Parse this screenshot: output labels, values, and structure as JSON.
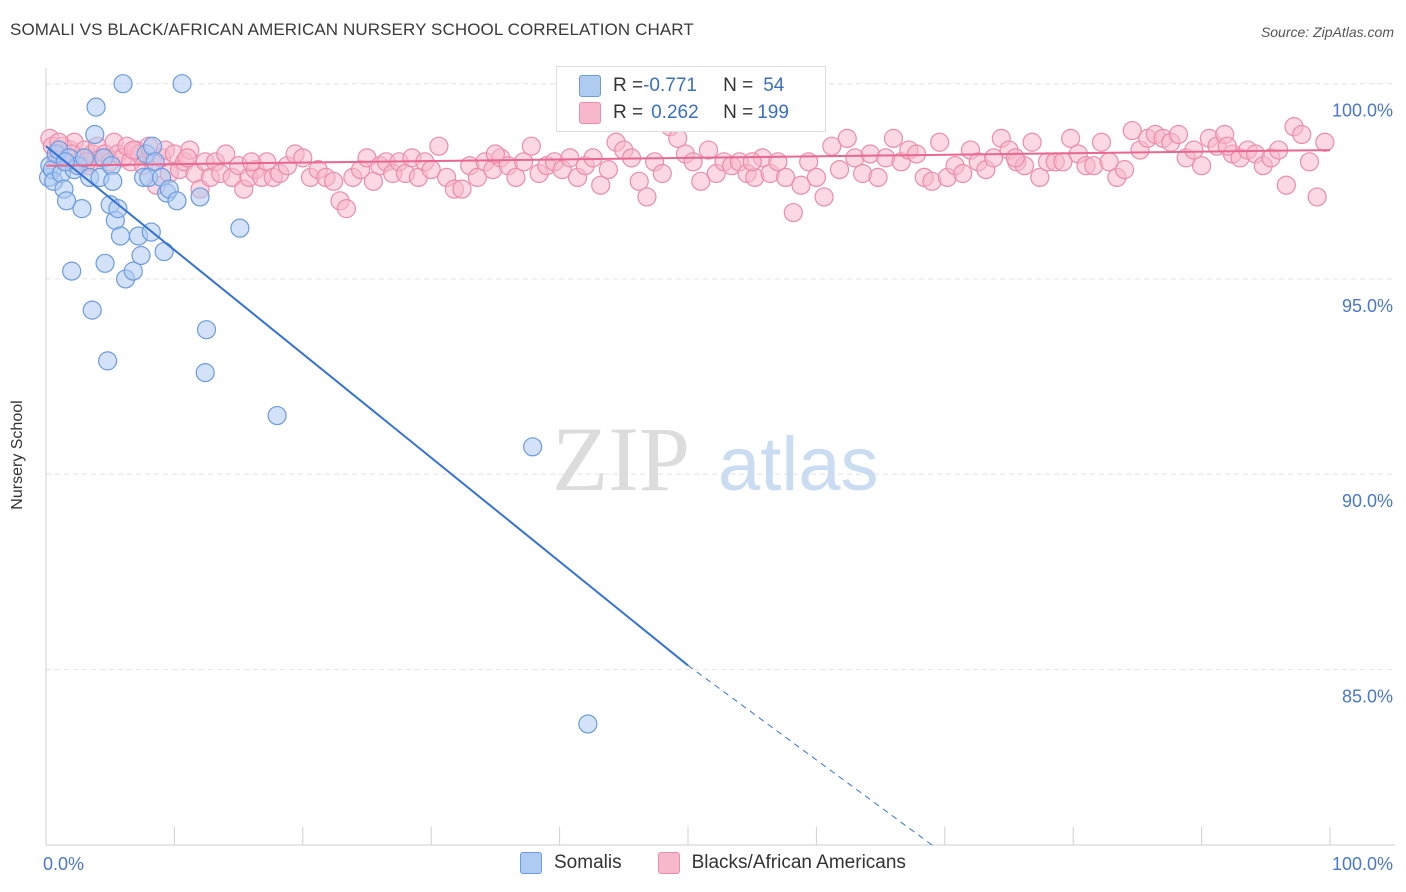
{
  "header": {
    "title": "SOMALI VS BLACK/AFRICAN AMERICAN NURSERY SCHOOL CORRELATION CHART",
    "source": "Source: ZipAtlas.com"
  },
  "watermark": {
    "zip": "ZIP",
    "atlas": "atlas"
  },
  "legend_top": {
    "rows": [
      {
        "r_label": "R = ",
        "r_value": "-0.771",
        "n_label": "N = ",
        "n_value": "54",
        "color": "#aecbf2"
      },
      {
        "r_label": "R = ",
        "r_value": "0.262",
        "n_label": "N = ",
        "n_value": "199",
        "color": "#f7b8cc"
      }
    ]
  },
  "legend_bottom": {
    "items": [
      {
        "label": "Somalis",
        "color": "#aecbf2"
      },
      {
        "label": "Blacks/African Americans",
        "color": "#f7b8cc"
      }
    ]
  },
  "chart_data": {
    "type": "scatter",
    "title": "SOMALI VS BLACK/AFRICAN AMERICAN NURSERY SCHOOL CORRELATION CHART",
    "xlabel": "",
    "ylabel": "Nursery School",
    "xlim": [
      0,
      100
    ],
    "ylim": [
      80.5,
      100.3
    ],
    "x_tick_labels": [
      "0.0%",
      "100.0%"
    ],
    "y_ticks": [
      {
        "value": 85,
        "label": "85.0%"
      },
      {
        "value": 90,
        "label": "90.0%"
      },
      {
        "value": 95,
        "label": "95.0%"
      },
      {
        "value": 100,
        "label": "100.0%"
      }
    ],
    "series": [
      {
        "name": "Somalis",
        "color": "#aecbf2",
        "stroke": "#6c9be0",
        "line_color": "#3472d4",
        "trend": {
          "x0": 0,
          "y0": 98.4,
          "x1": 50,
          "y1": 85.1,
          "dash_to_x": 69,
          "dash_to_y": 80.5
        },
        "points": [
          [
            0.2,
            97.6
          ],
          [
            0.3,
            97.9
          ],
          [
            0.5,
            97.8
          ],
          [
            0.6,
            97.5
          ],
          [
            0.8,
            98.2
          ],
          [
            1.0,
            98.3
          ],
          [
            1.2,
            97.7
          ],
          [
            1.4,
            97.3
          ],
          [
            1.6,
            97.0
          ],
          [
            1.8,
            98.1
          ],
          [
            2.0,
            95.2
          ],
          [
            2.2,
            97.8
          ],
          [
            2.5,
            97.9
          ],
          [
            2.8,
            96.8
          ],
          [
            3.0,
            98.1
          ],
          [
            3.4,
            97.6
          ],
          [
            3.6,
            94.2
          ],
          [
            3.8,
            98.7
          ],
          [
            3.9,
            99.4
          ],
          [
            4.2,
            97.6
          ],
          [
            4.5,
            98.1
          ],
          [
            4.6,
            95.4
          ],
          [
            4.8,
            92.9
          ],
          [
            5.0,
            96.9
          ],
          [
            5.1,
            97.9
          ],
          [
            5.2,
            97.5
          ],
          [
            5.4,
            96.5
          ],
          [
            5.6,
            96.8
          ],
          [
            5.8,
            96.1
          ],
          [
            6.0,
            100.0
          ],
          [
            6.2,
            95.0
          ],
          [
            6.8,
            95.2
          ],
          [
            7.2,
            96.1
          ],
          [
            7.4,
            95.6
          ],
          [
            7.6,
            97.6
          ],
          [
            7.8,
            98.2
          ],
          [
            8.0,
            97.6
          ],
          [
            8.2,
            96.2
          ],
          [
            8.3,
            98.4
          ],
          [
            8.5,
            98.0
          ],
          [
            9.0,
            97.6
          ],
          [
            9.2,
            95.7
          ],
          [
            9.4,
            97.2
          ],
          [
            9.6,
            97.3
          ],
          [
            10.2,
            97.0
          ],
          [
            10.6,
            100.0
          ],
          [
            12.0,
            97.1
          ],
          [
            12.4,
            92.6
          ],
          [
            12.5,
            93.7
          ],
          [
            15.1,
            96.3
          ],
          [
            18.0,
            91.5
          ],
          [
            37.9,
            90.7
          ],
          [
            42.2,
            83.6
          ],
          [
            1.5,
            98.0
          ]
        ]
      },
      {
        "name": "Blacks/African Americans",
        "color": "#f7b8cc",
        "stroke": "#ec8caa",
        "line_color": "#e86790",
        "trend": {
          "x0": 0,
          "y0": 97.9,
          "x1": 100,
          "y1": 98.3
        },
        "points": [
          [
            0.3,
            98.6
          ],
          [
            0.5,
            98.4
          ],
          [
            0.8,
            98.1
          ],
          [
            1.0,
            98.2
          ],
          [
            1.3,
            98.4
          ],
          [
            1.6,
            98.0
          ],
          [
            1.9,
            98.3
          ],
          [
            2.2,
            98.5
          ],
          [
            2.5,
            98.0
          ],
          [
            2.8,
            98.1
          ],
          [
            3.0,
            98.3
          ],
          [
            3.3,
            97.9
          ],
          [
            3.6,
            98.2
          ],
          [
            4.0,
            98.4
          ],
          [
            4.3,
            98.1
          ],
          [
            4.6,
            98.2
          ],
          [
            5.0,
            98.0
          ],
          [
            5.3,
            98.5
          ],
          [
            5.6,
            98.2
          ],
          [
            6.0,
            98.1
          ],
          [
            6.3,
            98.4
          ],
          [
            6.6,
            98.0
          ],
          [
            7.0,
            98.3
          ],
          [
            7.3,
            98.2
          ],
          [
            7.6,
            97.9
          ],
          [
            8.0,
            98.4
          ],
          [
            8.3,
            98.0
          ],
          [
            8.6,
            97.4
          ],
          [
            9.0,
            98.1
          ],
          [
            9.3,
            98.3
          ],
          [
            9.6,
            97.7
          ],
          [
            10.0,
            98.2
          ],
          [
            10.4,
            97.8
          ],
          [
            10.8,
            98.0
          ],
          [
            11.2,
            98.3
          ],
          [
            11.6,
            97.7
          ],
          [
            12.0,
            97.3
          ],
          [
            12.4,
            98.0
          ],
          [
            12.8,
            97.6
          ],
          [
            13.2,
            98.0
          ],
          [
            13.6,
            97.7
          ],
          [
            14.0,
            98.2
          ],
          [
            14.5,
            97.6
          ],
          [
            15.0,
            97.9
          ],
          [
            15.4,
            97.3
          ],
          [
            15.8,
            97.6
          ],
          [
            16.3,
            97.8
          ],
          [
            16.8,
            97.6
          ],
          [
            17.2,
            98.0
          ],
          [
            17.7,
            97.6
          ],
          [
            18.2,
            97.7
          ],
          [
            18.8,
            97.9
          ],
          [
            19.4,
            98.2
          ],
          [
            20.0,
            98.1
          ],
          [
            20.6,
            97.6
          ],
          [
            21.2,
            97.8
          ],
          [
            21.8,
            97.6
          ],
          [
            22.4,
            97.5
          ],
          [
            22.9,
            97.0
          ],
          [
            23.4,
            96.8
          ],
          [
            23.9,
            97.6
          ],
          [
            24.5,
            97.8
          ],
          [
            25.0,
            98.1
          ],
          [
            25.5,
            97.5
          ],
          [
            26.0,
            97.9
          ],
          [
            26.5,
            98.0
          ],
          [
            27.0,
            97.7
          ],
          [
            27.5,
            98.0
          ],
          [
            28.0,
            97.7
          ],
          [
            28.5,
            98.1
          ],
          [
            29.0,
            97.6
          ],
          [
            29.5,
            98.0
          ],
          [
            30.0,
            97.8
          ],
          [
            30.6,
            98.4
          ],
          [
            31.2,
            97.6
          ],
          [
            31.8,
            97.3
          ],
          [
            32.4,
            97.3
          ],
          [
            33.0,
            97.9
          ],
          [
            33.6,
            97.6
          ],
          [
            34.2,
            98.0
          ],
          [
            34.8,
            97.8
          ],
          [
            35.4,
            98.1
          ],
          [
            36.0,
            97.9
          ],
          [
            36.6,
            97.6
          ],
          [
            37.2,
            98.0
          ],
          [
            37.8,
            98.4
          ],
          [
            38.4,
            97.7
          ],
          [
            39.0,
            97.9
          ],
          [
            39.6,
            98.0
          ],
          [
            40.2,
            97.8
          ],
          [
            40.8,
            98.1
          ],
          [
            41.4,
            97.6
          ],
          [
            42.0,
            97.9
          ],
          [
            42.6,
            98.1
          ],
          [
            43.2,
            97.4
          ],
          [
            43.8,
            97.8
          ],
          [
            44.4,
            98.5
          ],
          [
            45.0,
            98.3
          ],
          [
            45.6,
            98.1
          ],
          [
            46.2,
            97.5
          ],
          [
            46.8,
            97.1
          ],
          [
            47.4,
            98.0
          ],
          [
            48.0,
            97.7
          ],
          [
            48.6,
            98.9
          ],
          [
            49.2,
            98.6
          ],
          [
            49.8,
            98.2
          ],
          [
            50.4,
            98.0
          ],
          [
            51.0,
            97.5
          ],
          [
            51.6,
            98.3
          ],
          [
            52.2,
            97.7
          ],
          [
            52.8,
            98.0
          ],
          [
            53.4,
            97.9
          ],
          [
            54.0,
            98.0
          ],
          [
            54.6,
            97.7
          ],
          [
            55.2,
            97.6
          ],
          [
            55.8,
            98.1
          ],
          [
            56.4,
            97.7
          ],
          [
            57.0,
            98.0
          ],
          [
            57.6,
            97.6
          ],
          [
            58.2,
            96.7
          ],
          [
            58.8,
            97.4
          ],
          [
            59.4,
            98.0
          ],
          [
            60.0,
            97.6
          ],
          [
            60.6,
            97.1
          ],
          [
            61.2,
            98.4
          ],
          [
            61.8,
            97.8
          ],
          [
            62.4,
            98.6
          ],
          [
            63.0,
            98.1
          ],
          [
            63.6,
            97.7
          ],
          [
            64.2,
            98.2
          ],
          [
            64.8,
            97.6
          ],
          [
            65.4,
            98.1
          ],
          [
            66.0,
            98.6
          ],
          [
            66.6,
            98.0
          ],
          [
            67.2,
            98.3
          ],
          [
            67.8,
            98.2
          ],
          [
            68.4,
            97.6
          ],
          [
            69.0,
            97.5
          ],
          [
            69.6,
            98.5
          ],
          [
            70.2,
            97.6
          ],
          [
            70.8,
            97.9
          ],
          [
            71.4,
            97.7
          ],
          [
            72.0,
            98.3
          ],
          [
            72.6,
            98.0
          ],
          [
            73.2,
            97.8
          ],
          [
            73.8,
            98.1
          ],
          [
            74.4,
            98.6
          ],
          [
            75.0,
            98.3
          ],
          [
            75.6,
            98.0
          ],
          [
            76.2,
            97.9
          ],
          [
            76.8,
            98.5
          ],
          [
            77.4,
            97.6
          ],
          [
            78.0,
            98.0
          ],
          [
            78.6,
            98.0
          ],
          [
            79.2,
            98.0
          ],
          [
            79.8,
            98.6
          ],
          [
            80.4,
            98.2
          ],
          [
            81.0,
            97.9
          ],
          [
            81.6,
            97.9
          ],
          [
            82.2,
            98.5
          ],
          [
            82.8,
            98.0
          ],
          [
            83.4,
            97.6
          ],
          [
            84.0,
            97.8
          ],
          [
            84.6,
            98.8
          ],
          [
            85.2,
            98.3
          ],
          [
            85.8,
            98.6
          ],
          [
            86.4,
            98.7
          ],
          [
            87.0,
            98.6
          ],
          [
            87.6,
            98.5
          ],
          [
            88.2,
            98.7
          ],
          [
            88.8,
            98.1
          ],
          [
            89.4,
            98.3
          ],
          [
            90.0,
            97.9
          ],
          [
            90.6,
            98.6
          ],
          [
            91.2,
            98.4
          ],
          [
            91.8,
            98.7
          ],
          [
            92.4,
            98.2
          ],
          [
            93.0,
            98.1
          ],
          [
            93.6,
            98.3
          ],
          [
            94.2,
            98.2
          ],
          [
            94.8,
            97.9
          ],
          [
            95.4,
            98.1
          ],
          [
            96.0,
            98.3
          ],
          [
            96.6,
            97.4
          ],
          [
            97.2,
            98.9
          ],
          [
            97.8,
            98.7
          ],
          [
            98.4,
            98.0
          ],
          [
            99.0,
            97.1
          ],
          [
            99.6,
            98.5
          ],
          [
            1.0,
            98.5
          ],
          [
            2.0,
            98.2
          ],
          [
            3.2,
            98.0
          ],
          [
            6.8,
            98.3
          ],
          [
            11.0,
            98.1
          ],
          [
            16.0,
            98.0
          ],
          [
            35.0,
            98.2
          ],
          [
            55.0,
            98.0
          ],
          [
            75.5,
            98.1
          ],
          [
            92.0,
            98.4
          ]
        ]
      }
    ]
  }
}
